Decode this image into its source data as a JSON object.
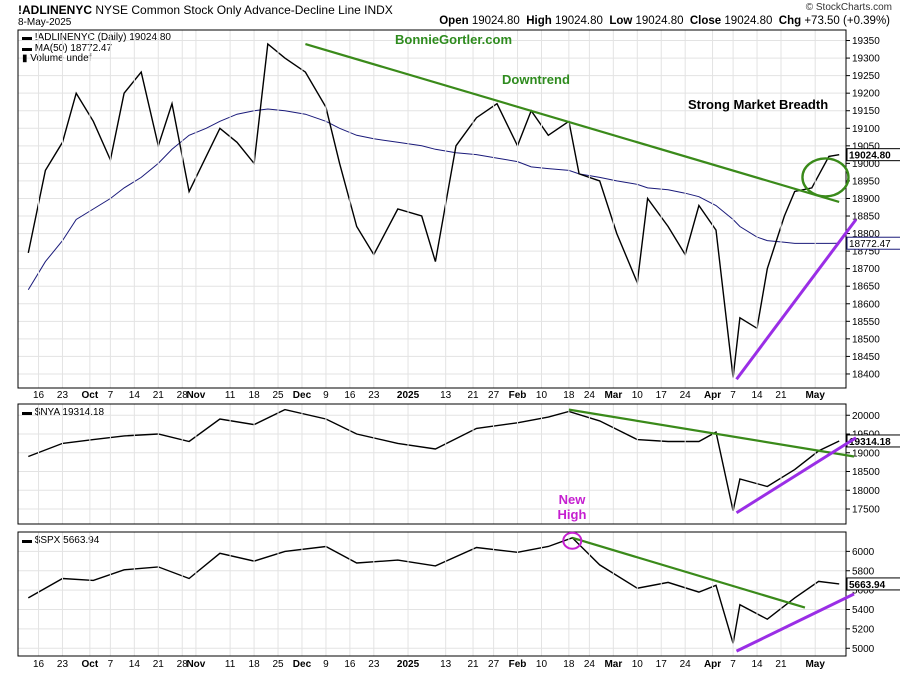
{
  "header": {
    "symbol": "!ADLINENYC",
    "name": "NYSE Common Stock Only Advance-Decline Line",
    "exchange": "INDX",
    "date": "8-May-2025",
    "brand": "© StockCharts.com",
    "open_label": "Open",
    "open": "19024.80",
    "high_label": "High",
    "high": "19024.80",
    "low_label": "Low",
    "low": "19024.80",
    "close_label": "Close",
    "close": "19024.80",
    "chg_label": "Chg",
    "chg": "+73.50 (+0.39%)"
  },
  "colors": {
    "price": "#000000",
    "ma": "#1a1a7a",
    "downtrend": "#3a8a1a",
    "uptrend": "#9a2ee6",
    "annotation_green": "#2e8b1e",
    "annotation_magenta": "#c51fd0",
    "grid": "#e3e3e3"
  },
  "chart_data": [
    {
      "type": "line",
      "legend": [
        "!ADLINENYC (Daily) 19024.80",
        "MA(50) 18772.47",
        "Volume undef"
      ],
      "series": [
        {
          "name": "!ADLINENYC (Daily)",
          "last": 19024.8
        },
        {
          "name": "MA(50)",
          "last": 18772.47
        }
      ],
      "ylim": [
        18360,
        19380
      ],
      "yticks": [
        "18400",
        "18450",
        "18500",
        "18550",
        "18600",
        "18650",
        "18700",
        "18750",
        "18800",
        "18850",
        "18900",
        "18950",
        "19000",
        "19050",
        "19100",
        "19150",
        "19200",
        "19250",
        "19300",
        "19350"
      ],
      "price_label": "19024.80",
      "ma_label": "18772.47",
      "annotations": {
        "watermark": "BonnieGortler.com",
        "downtrend": "Downtrend",
        "breadth": "Strong Market Breadth"
      },
      "x": [
        "2024-09-13",
        "2024-09-18",
        "2024-09-23",
        "2024-09-27",
        "2024-10-02",
        "2024-10-07",
        "2024-10-11",
        "2024-10-16",
        "2024-10-21",
        "2024-10-25",
        "2024-10-30",
        "2024-11-04",
        "2024-11-08",
        "2024-11-13",
        "2024-11-18",
        "2024-11-22",
        "2024-11-27",
        "2024-12-03",
        "2024-12-09",
        "2024-12-13",
        "2024-12-18",
        "2024-12-23",
        "2024-12-30",
        "2025-01-06",
        "2025-01-10",
        "2025-01-16",
        "2025-01-22",
        "2025-01-28",
        "2025-02-03",
        "2025-02-07",
        "2025-02-12",
        "2025-02-18",
        "2025-02-21",
        "2025-02-27",
        "2025-03-04",
        "2025-03-10",
        "2025-03-13",
        "2025-03-19",
        "2025-03-24",
        "2025-03-28",
        "2025-04-02",
        "2025-04-07",
        "2025-04-09",
        "2025-04-14",
        "2025-04-17",
        "2025-04-22",
        "2025-04-25",
        "2025-04-30",
        "2025-05-05",
        "2025-05-08"
      ],
      "values": [
        18745,
        18980,
        19060,
        19200,
        19120,
        19010,
        19200,
        19260,
        19050,
        19170,
        18920,
        19020,
        19100,
        19060,
        19000,
        19340,
        19300,
        19260,
        19160,
        19000,
        18820,
        18740,
        18870,
        18850,
        18720,
        19050,
        19130,
        19170,
        19050,
        19150,
        19080,
        19120,
        18970,
        18950,
        18800,
        18660,
        18900,
        18820,
        18740,
        18880,
        18810,
        18390,
        18560,
        18530,
        18700,
        18850,
        18920,
        18930,
        19020,
        19024.8
      ],
      "ma_values": [
        18640,
        18720,
        18780,
        18840,
        18870,
        18900,
        18930,
        18960,
        19000,
        19040,
        19080,
        19100,
        19120,
        19140,
        19150,
        19155,
        19150,
        19140,
        19120,
        19100,
        19080,
        19070,
        19060,
        19050,
        19040,
        19030,
        19025,
        19015,
        19005,
        18990,
        18985,
        18980,
        18970,
        18960,
        18950,
        18940,
        18930,
        18925,
        18915,
        18905,
        18880,
        18840,
        18820,
        18790,
        18780,
        18775,
        18772,
        18772,
        18772,
        18772.47
      ]
    },
    {
      "type": "line",
      "legend": [
        "$NYA 19314.18"
      ],
      "series": [
        {
          "name": "$NYA",
          "last": 19314.18
        }
      ],
      "ylim": [
        17100,
        20300
      ],
      "yticks": [
        "17500",
        "18000",
        "18500",
        "19000",
        "19500",
        "20000"
      ],
      "price_label": "19314.18",
      "x": [
        "2024-09-13",
        "2024-09-23",
        "2024-10-02",
        "2024-10-11",
        "2024-10-21",
        "2024-10-30",
        "2024-11-08",
        "2024-11-18",
        "2024-11-27",
        "2024-12-09",
        "2024-12-18",
        "2024-12-30",
        "2025-01-10",
        "2025-01-22",
        "2025-02-03",
        "2025-02-12",
        "2025-02-18",
        "2025-02-27",
        "2025-03-10",
        "2025-03-19",
        "2025-03-28",
        "2025-04-02",
        "2025-04-07",
        "2025-04-09",
        "2025-04-17",
        "2025-04-25",
        "2025-05-02",
        "2025-05-08"
      ],
      "values": [
        18900,
        19250,
        19350,
        19450,
        19500,
        19300,
        19900,
        19750,
        20150,
        19900,
        19500,
        19250,
        19100,
        19650,
        19800,
        19950,
        20100,
        19850,
        19350,
        19300,
        19300,
        19550,
        17450,
        18300,
        18100,
        18550,
        19050,
        19314.18
      ]
    },
    {
      "type": "line",
      "legend": [
        "$SPX 5663.94"
      ],
      "series": [
        {
          "name": "$SPX",
          "last": 5663.94
        }
      ],
      "ylim": [
        4920,
        6200
      ],
      "yticks": [
        "5000",
        "5200",
        "5400",
        "5600",
        "5800",
        "6000"
      ],
      "price_label": "5663.94",
      "annotation": "New\nHigh",
      "x": [
        "2024-09-13",
        "2024-09-23",
        "2024-10-02",
        "2024-10-11",
        "2024-10-21",
        "2024-10-30",
        "2024-11-08",
        "2024-11-18",
        "2024-11-27",
        "2024-12-09",
        "2024-12-18",
        "2024-12-30",
        "2025-01-10",
        "2025-01-22",
        "2025-02-03",
        "2025-02-12",
        "2025-02-19",
        "2025-02-27",
        "2025-03-10",
        "2025-03-19",
        "2025-03-28",
        "2025-04-02",
        "2025-04-07",
        "2025-04-09",
        "2025-04-17",
        "2025-04-25",
        "2025-05-02",
        "2025-05-08"
      ],
      "values": [
        5520,
        5720,
        5700,
        5810,
        5840,
        5720,
        5980,
        5900,
        6000,
        6050,
        5880,
        5910,
        5850,
        6040,
        5990,
        6050,
        6140,
        5860,
        5620,
        5680,
        5580,
        5650,
        5050,
        5450,
        5300,
        5520,
        5690,
        5663.94
      ]
    }
  ],
  "xaxis": [
    "16",
    "23",
    "Oct",
    "7",
    "14",
    "21",
    "28",
    "Nov",
    "11",
    "18",
    "25",
    "Dec",
    "9",
    "16",
    "23",
    "2025",
    "13",
    "21",
    "27",
    "Feb",
    "10",
    "18",
    "24",
    "Mar",
    "10",
    "17",
    "24",
    "Apr",
    "7",
    "14",
    "21",
    "May"
  ]
}
